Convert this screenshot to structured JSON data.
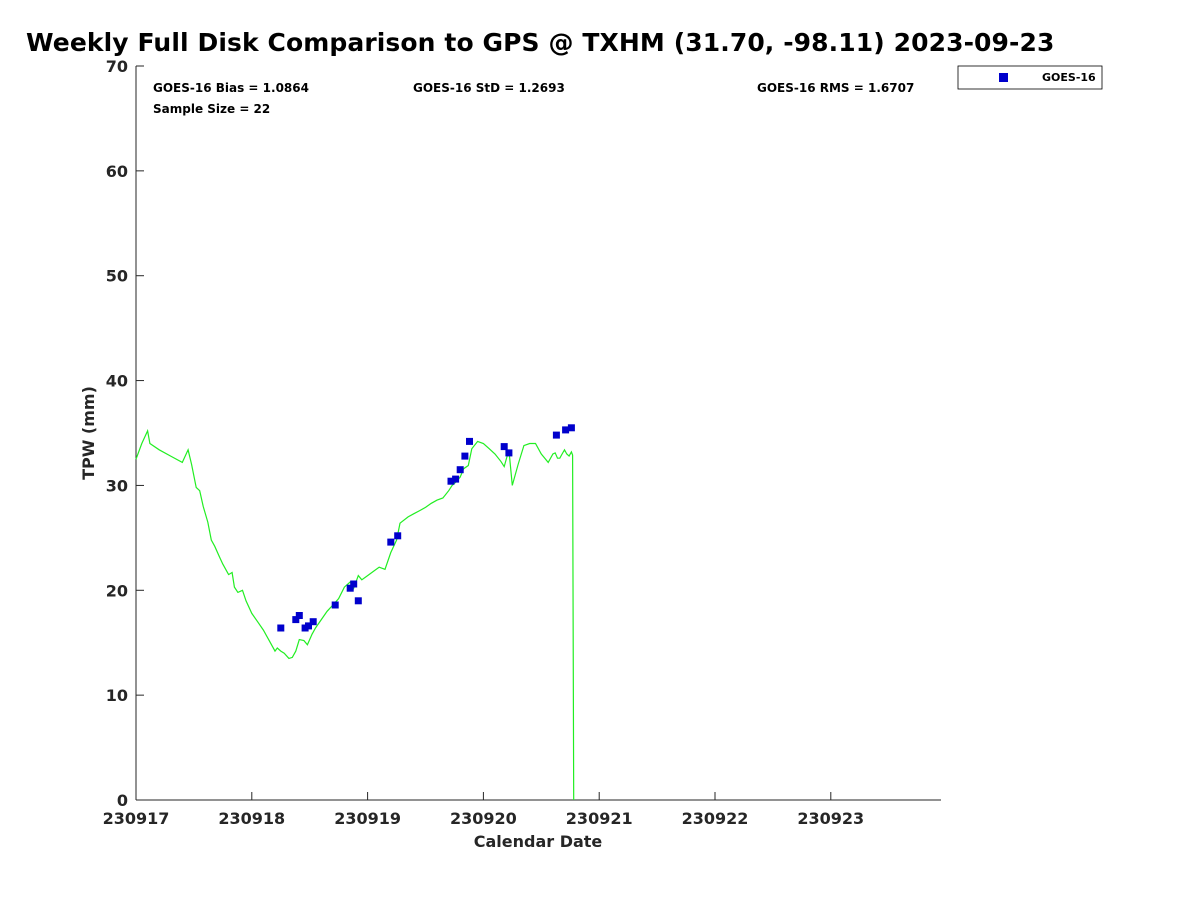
{
  "title": "Weekly Full Disk Comparison to GPS @ TXHM (31.70, -98.11) 2023-09-23",
  "stats": {
    "bias": "GOES-16 Bias = 1.0864",
    "std": "GOES-16 StD = 1.2693",
    "rms": "GOES-16 RMS = 1.6707",
    "sample": "Sample Size = 22"
  },
  "chart_data": {
    "type": "scatter",
    "title": "Weekly Full Disk Comparison to GPS @ TXHM (31.70, -98.11) 2023-09-23",
    "xlabel": "Calendar Date",
    "ylabel": "TPW (mm)",
    "xlim": [
      "230917",
      "230924"
    ],
    "ylim": [
      0,
      70
    ],
    "x_ticks": [
      "230917",
      "230918",
      "230919",
      "230920",
      "230921",
      "230922",
      "230923"
    ],
    "y_ticks": [
      0,
      10,
      20,
      30,
      40,
      50,
      60,
      70
    ],
    "grid": false,
    "legend": {
      "placement": "outside-top-right",
      "entries": [
        "GOES-16"
      ]
    },
    "colors": {
      "goes16": "#0000cc",
      "gps": "#22ee22"
    },
    "series": [
      {
        "name": "GOES-16",
        "kind": "scatter",
        "x_days": [
          1.25,
          1.38,
          1.41,
          1.46,
          1.49,
          1.53,
          1.72,
          1.85,
          1.88,
          1.92,
          2.2,
          2.26,
          2.72,
          2.76,
          2.8,
          2.84,
          2.88,
          3.18,
          3.22,
          3.63,
          3.71,
          3.76
        ],
        "y": [
          16.4,
          17.2,
          17.6,
          16.4,
          16.6,
          17.0,
          18.6,
          20.2,
          20.6,
          19.0,
          24.6,
          25.2,
          30.4,
          30.6,
          31.5,
          32.8,
          34.2,
          33.7,
          33.1,
          34.8,
          35.3,
          35.5
        ]
      },
      {
        "kind": "line",
        "x_days": [
          0.0,
          0.05,
          0.1,
          0.12,
          0.2,
          0.3,
          0.4,
          0.45,
          0.48,
          0.52,
          0.55,
          0.58,
          0.62,
          0.65,
          0.68,
          0.72,
          0.75,
          0.8,
          0.83,
          0.85,
          0.88,
          0.92,
          0.95,
          1.0,
          1.05,
          1.1,
          1.15,
          1.2,
          1.22,
          1.25,
          1.28,
          1.32,
          1.35,
          1.38,
          1.41,
          1.45,
          1.48,
          1.52,
          1.55,
          1.6,
          1.65,
          1.7,
          1.75,
          1.8,
          1.85,
          1.88,
          1.92,
          1.95,
          2.0,
          2.05,
          2.1,
          2.15,
          2.2,
          2.25,
          2.28,
          2.35,
          2.4,
          2.45,
          2.5,
          2.55,
          2.6,
          2.65,
          2.7,
          2.73,
          2.76,
          2.8,
          2.83,
          2.87,
          2.9,
          2.95,
          3.0,
          3.05,
          3.1,
          3.15,
          3.18,
          3.22,
          3.25,
          3.3,
          3.35,
          3.4,
          3.45,
          3.5,
          3.53,
          3.56,
          3.6,
          3.62,
          3.64,
          3.66,
          3.68,
          3.7,
          3.72,
          3.74,
          3.76,
          3.77,
          3.78
        ],
        "y": [
          32.5,
          34.0,
          35.2,
          34.0,
          33.4,
          32.8,
          32.2,
          33.4,
          32.0,
          29.8,
          29.5,
          28.0,
          26.5,
          24.8,
          24.2,
          23.2,
          22.5,
          21.5,
          21.7,
          20.3,
          19.8,
          20.0,
          19.0,
          17.8,
          17.0,
          16.2,
          15.2,
          14.2,
          14.5,
          14.2,
          14.0,
          13.5,
          13.6,
          14.2,
          15.3,
          15.2,
          14.8,
          15.8,
          16.4,
          17.2,
          18.0,
          18.6,
          19.2,
          20.3,
          20.8,
          20.2,
          21.4,
          21.0,
          21.4,
          21.8,
          22.2,
          22.0,
          23.6,
          24.8,
          26.4,
          27.0,
          27.3,
          27.6,
          27.9,
          28.3,
          28.6,
          28.8,
          29.5,
          30.0,
          30.3,
          30.8,
          31.6,
          31.9,
          33.5,
          34.2,
          34.0,
          33.5,
          33.0,
          32.3,
          31.8,
          33.4,
          30.0,
          32.0,
          33.8,
          34.0,
          34.0,
          33.0,
          32.6,
          32.2,
          33.0,
          33.1,
          32.6,
          32.6,
          33.0,
          33.4,
          33.0,
          32.8,
          33.2,
          32.9,
          0.0
        ]
      }
    ]
  }
}
